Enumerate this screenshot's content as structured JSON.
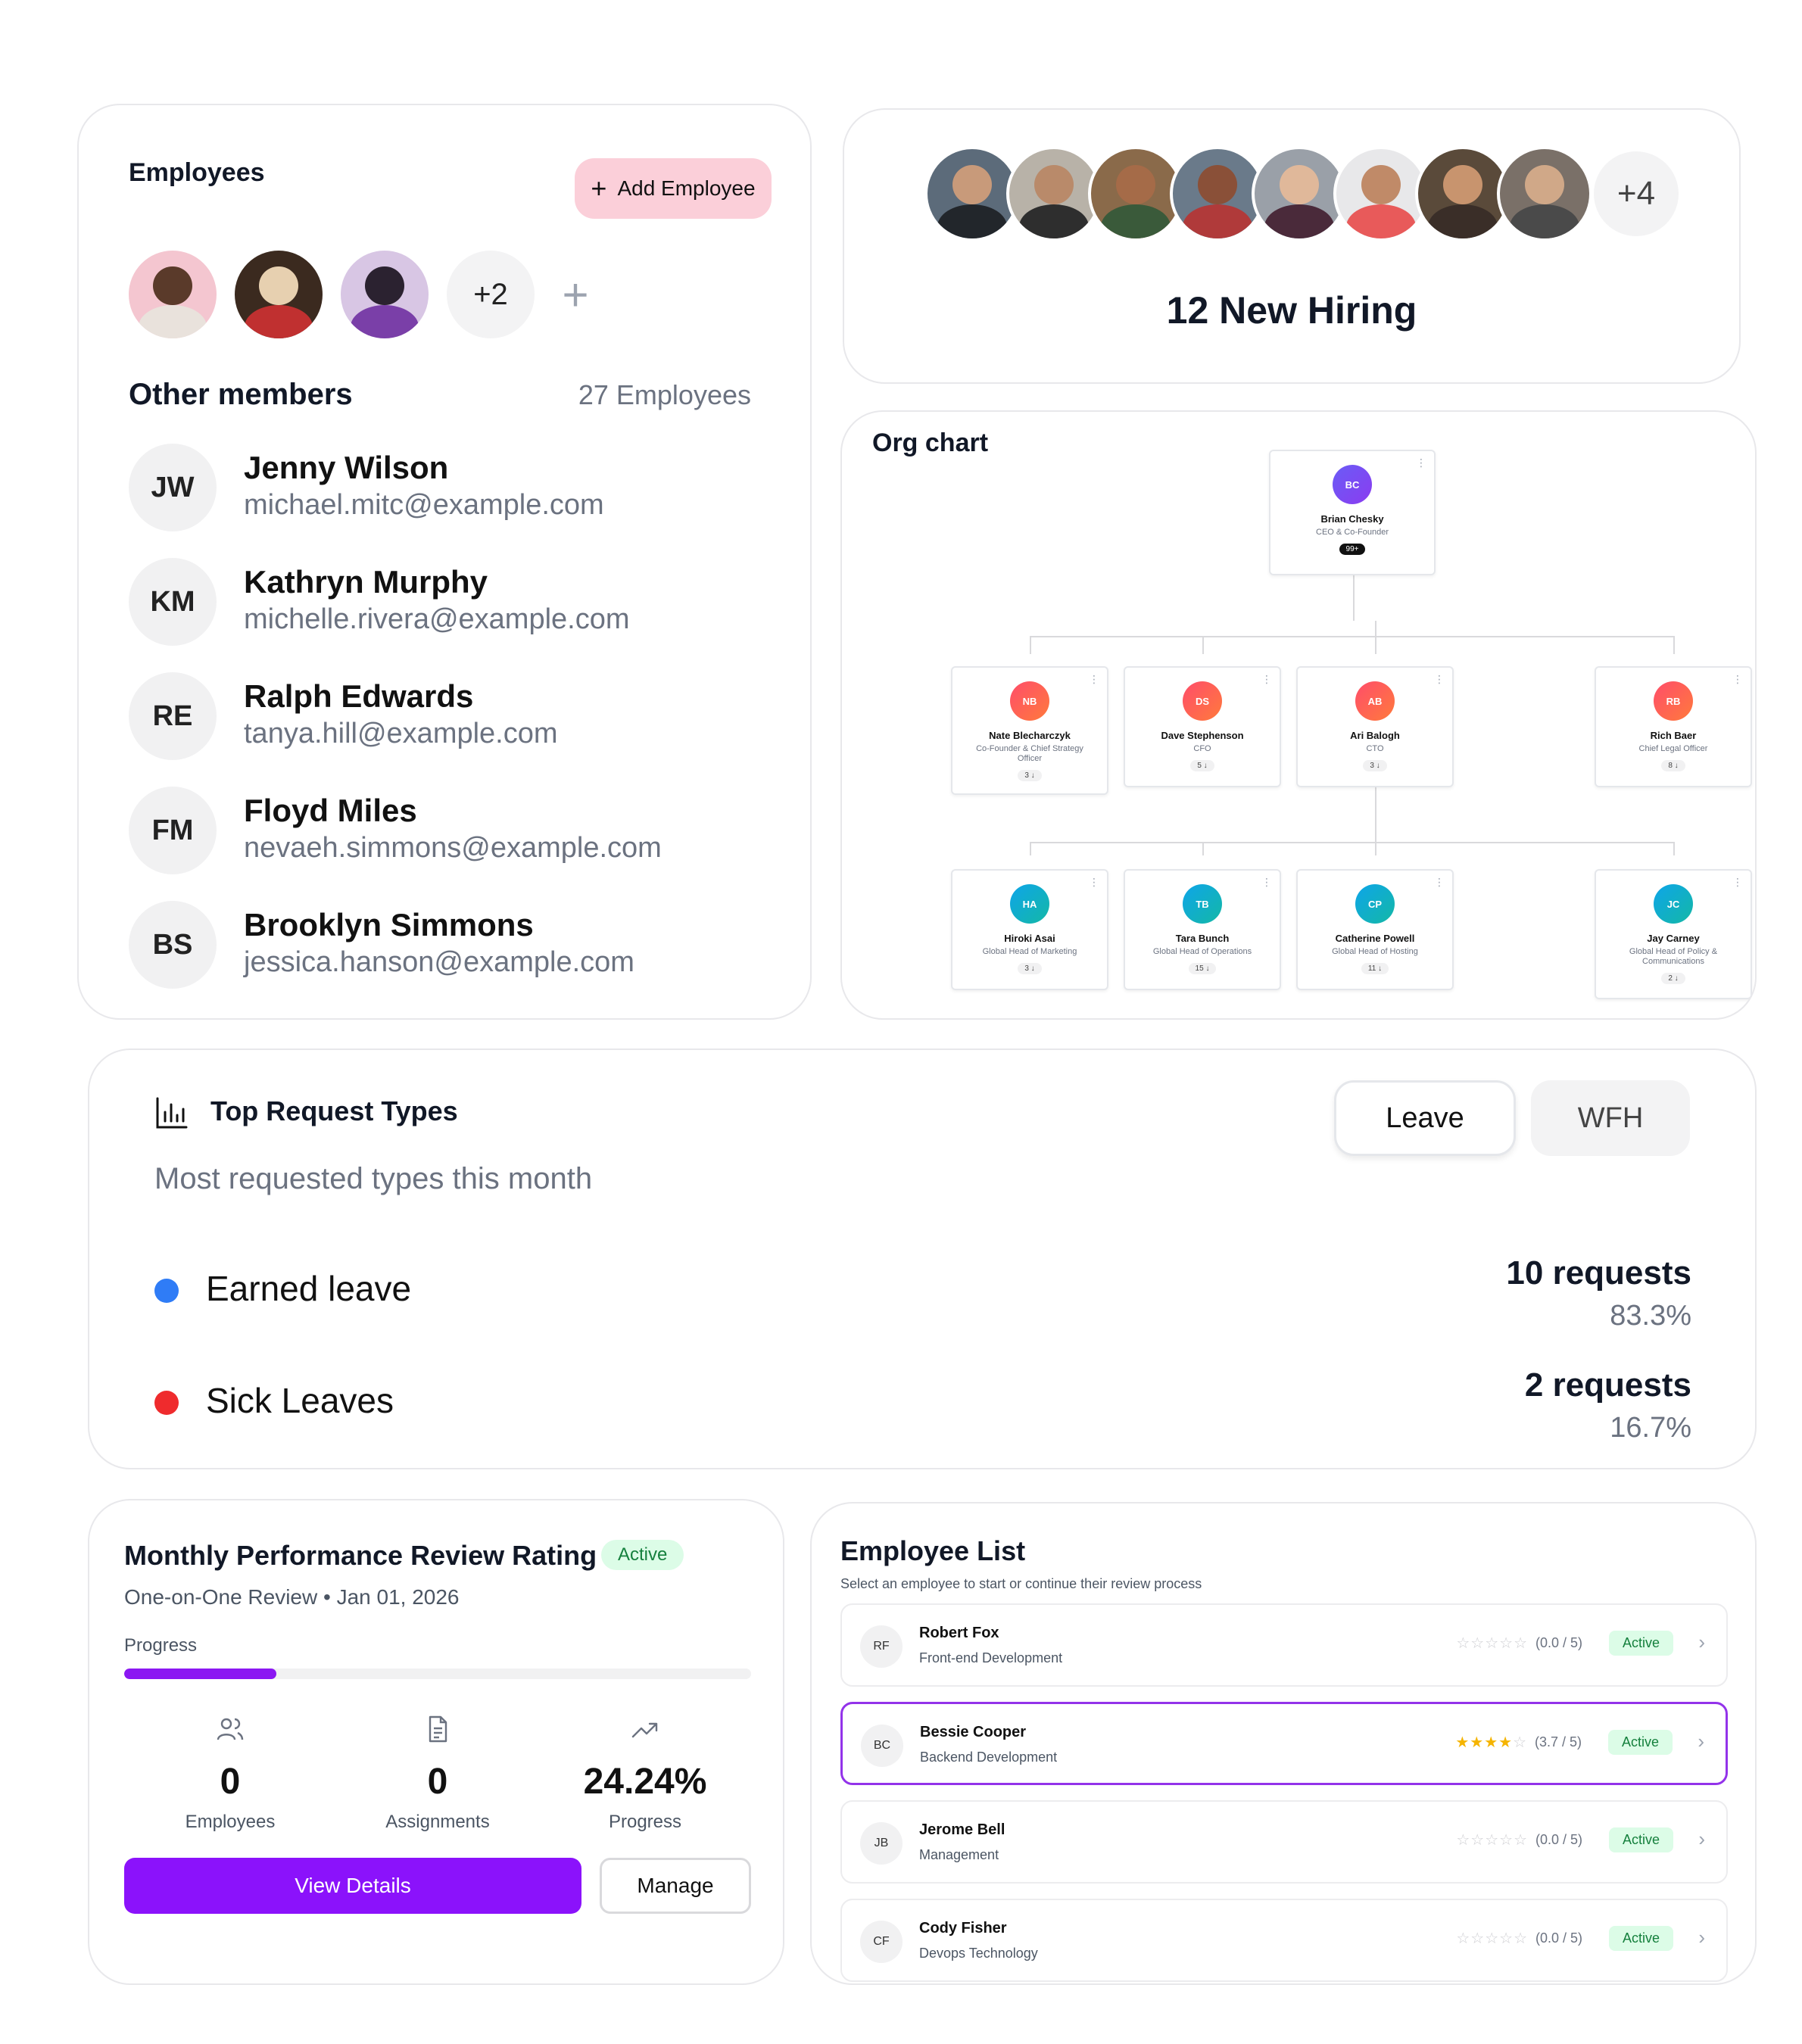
{
  "employees_card": {
    "title": "Employees",
    "add_button": "Add Employee",
    "avatars_more": "+2",
    "other_members_title": "Other members",
    "other_members_count": "27 Employees",
    "members": [
      {
        "initials": "JW",
        "name": "Jenny Wilson",
        "email": "michael.mitc@example.com"
      },
      {
        "initials": "KM",
        "name": "Kathryn Murphy",
        "email": "michelle.rivera@example.com"
      },
      {
        "initials": "RE",
        "name": "Ralph Edwards",
        "email": "tanya.hill@example.com"
      },
      {
        "initials": "FM",
        "name": "Floyd Miles",
        "email": "nevaeh.simmons@example.com"
      },
      {
        "initials": "BS",
        "name": "Brooklyn Simmons",
        "email": "jessica.hanson@example.com"
      }
    ]
  },
  "hiring_card": {
    "avatars_more": "+4",
    "title": "12 New Hiring"
  },
  "org_chart": {
    "title": "Org chart",
    "root": {
      "initials": "BC",
      "name": "Brian Chesky",
      "role": "CEO & Co-Founder",
      "count": "99+"
    },
    "level1": [
      {
        "initials": "NB",
        "name": "Nate Blecharczyk",
        "role": "Co-Founder & Chief Strategy Officer",
        "count": "3 ↓"
      },
      {
        "initials": "DS",
        "name": "Dave Stephenson",
        "role": "CFO",
        "count": "5 ↓"
      },
      {
        "initials": "AB",
        "name": "Ari Balogh",
        "role": "CTO",
        "count": "3 ↓"
      },
      {
        "initials": "RB",
        "name": "Rich Baer",
        "role": "Chief Legal Officer",
        "count": "8 ↓"
      }
    ],
    "level2": [
      {
        "initials": "HA",
        "name": "Hiroki Asai",
        "role": "Global Head of Marketing",
        "count": "3 ↓"
      },
      {
        "initials": "TB",
        "name": "Tara Bunch",
        "role": "Global Head of Operations",
        "count": "15 ↓"
      },
      {
        "initials": "CP",
        "name": "Catherine Powell",
        "role": "Global Head of Hosting",
        "count": "11 ↓"
      },
      {
        "initials": "JC",
        "name": "Jay Carney",
        "role": "Global Head of Policy & Communications",
        "count": "2 ↓"
      }
    ]
  },
  "requests": {
    "title": "Top Request Types",
    "subtitle": "Most requested types this month",
    "tabs": {
      "leave": "Leave",
      "wfh": "WFH"
    },
    "items": [
      {
        "label": "Earned leave",
        "count": "10 requests",
        "percent": "83.3%",
        "color": "#2f7cf6"
      },
      {
        "label": "Sick Leaves",
        "count": "2 requests",
        "percent": "16.7%",
        "color": "#ef2b2d"
      }
    ]
  },
  "performance": {
    "title": "Monthly Performance Review Rating",
    "badge": "Active",
    "subtitle": "One-on-One Review  • Jan 01, 2026",
    "progress_label": "Progress",
    "progress_fraction": 0.2424,
    "stats": [
      {
        "icon": "users-icon",
        "value": "0",
        "label": "Employees"
      },
      {
        "icon": "document-icon",
        "value": "0",
        "label": "Assignments"
      },
      {
        "icon": "trending-up-icon",
        "value": "24.24%",
        "label": "Progress"
      }
    ],
    "view_button": "View Details",
    "manage_button": "Manage",
    "accent": "#8b12fb"
  },
  "employee_list": {
    "title": "Employee List",
    "subtitle": "Select an employee to start or continue their review process",
    "rows": [
      {
        "initials": "RF",
        "name": "Robert Fox",
        "dept": "Front-end Development",
        "rating": "(0.0 / 5)",
        "stars": 0,
        "status": "Active"
      },
      {
        "initials": "BC",
        "name": "Bessie Cooper",
        "dept": "Backend Development",
        "rating": "(3.7 / 5)",
        "stars": 3.7,
        "status": "Active"
      },
      {
        "initials": "JB",
        "name": "Jerome Bell",
        "dept": "Management",
        "rating": "(0.0 / 5)",
        "stars": 0,
        "status": "Active"
      },
      {
        "initials": "CF",
        "name": "Cody Fisher",
        "dept": "Devops Technology",
        "rating": "(0.0 / 5)",
        "stars": 0,
        "status": "Active"
      }
    ]
  }
}
